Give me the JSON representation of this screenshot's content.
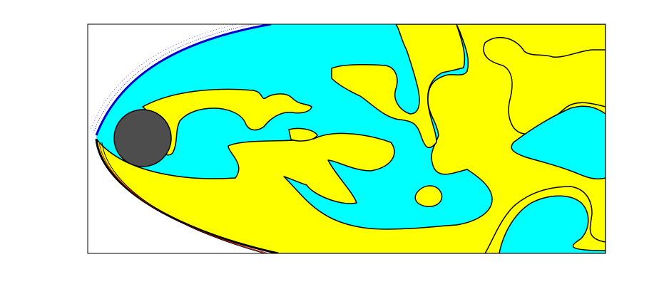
{
  "figure": {
    "type": "contour-plot",
    "title": "",
    "xlabel": "",
    "ylabel": "",
    "axes_frame": true,
    "ticks_visible": false,
    "grid": false,
    "legend": "none"
  },
  "colors": {
    "background": "#ffffff",
    "region_positive": "#ffff00",
    "region_negative": "#00ffff",
    "contour_line": "#000000",
    "bow_shock_upper": "#0000cc",
    "bow_shock_lower": "#000000",
    "wake_trace": "#cc0000",
    "body": "#4d4d4d",
    "frame": "#000000"
  },
  "objects": {
    "body_shape": "circle",
    "regions": [
      "cyan-region",
      "yellow-region"
    ],
    "shock_layers": [
      "upper-bow-shock",
      "lower-bow-shock"
    ]
  }
}
